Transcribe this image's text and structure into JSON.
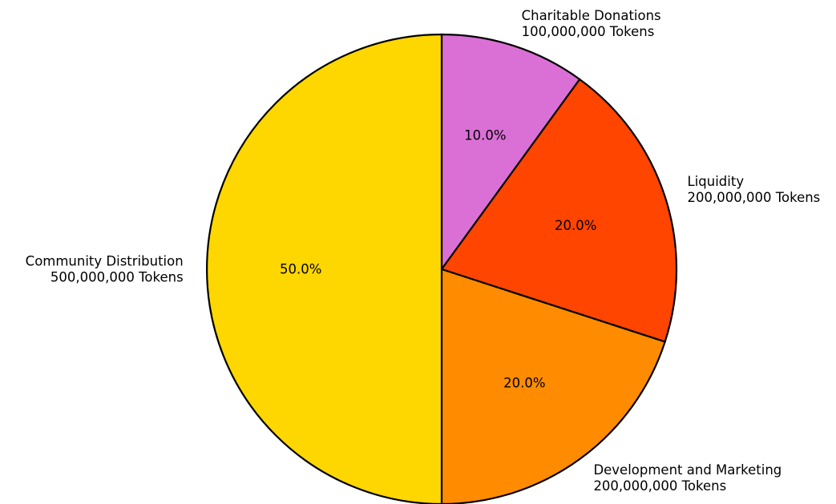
{
  "chart_data": {
    "type": "pie",
    "title": "",
    "slices": [
      {
        "name": "Charitable Donations",
        "value": 100000000,
        "value_label": "100,000,000 Tokens",
        "percent_label": "10.0%",
        "color": "#DA70D6"
      },
      {
        "name": "Liquidity",
        "value": 200000000,
        "value_label": "200,000,000 Tokens",
        "percent_label": "20.0%",
        "color": "#FF4500"
      },
      {
        "name": "Development and Marketing",
        "value": 200000000,
        "value_label": "200,000,000 Tokens",
        "percent_label": "20.0%",
        "color": "#FF8C00"
      },
      {
        "name": "Community Distribution",
        "value": 500000000,
        "value_label": "500,000,000 Tokens",
        "percent_label": "50.0%",
        "color": "#FFD700"
      }
    ],
    "start": "top",
    "direction": "clockwise",
    "legend": "none"
  }
}
